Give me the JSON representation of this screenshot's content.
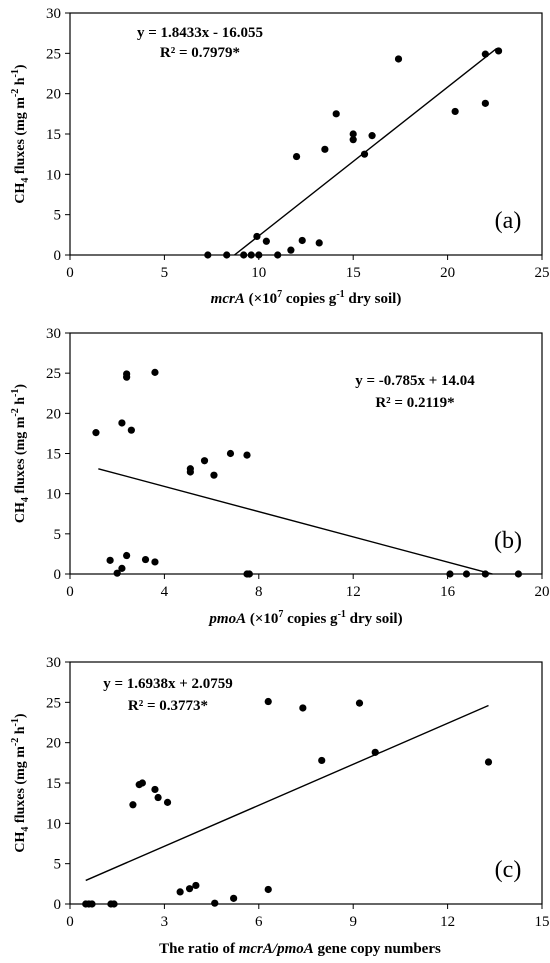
{
  "panels": [
    {
      "label": "(a)",
      "equation": "y = 1.8433x - 16.055",
      "r2": "R² = 0.7979*",
      "ylabel": {
        "pre": "CH",
        "sub": "4",
        "mid": " fluxes (mg m",
        "sup1": "-2",
        "mid2": " h",
        "sup2": "-1",
        "post": ")"
      },
      "xlabel": {
        "ital": "mcrA",
        "pre": " (×10",
        "sup": "7",
        "mid": " copies g",
        "sup2": "-1",
        "post": " dry soil)"
      },
      "xlim": [
        0,
        25
      ],
      "xticks": [
        0,
        5,
        10,
        15,
        20,
        25
      ],
      "ylim": [
        0,
        30
      ],
      "yticks": [
        0,
        5,
        10,
        15,
        20,
        25,
        30
      ],
      "fit": {
        "slope": 1.8433,
        "intercept": -16.055,
        "x_range": [
          8.71,
          22.6
        ]
      },
      "points": [
        [
          7.3,
          0
        ],
        [
          8.3,
          0
        ],
        [
          9.2,
          0
        ],
        [
          9.6,
          0
        ],
        [
          10.0,
          0
        ],
        [
          11.0,
          0
        ],
        [
          9.9,
          2.3
        ],
        [
          10.4,
          1.7
        ],
        [
          11.7,
          0.6
        ],
        [
          12.3,
          1.8
        ],
        [
          13.2,
          1.5
        ],
        [
          12.0,
          12.2
        ],
        [
          13.5,
          13.1
        ],
        [
          14.1,
          17.5
        ],
        [
          15.0,
          14.3
        ],
        [
          15.0,
          15.0
        ],
        [
          15.6,
          12.5
        ],
        [
          16.0,
          14.8
        ],
        [
          17.4,
          24.3
        ],
        [
          20.4,
          17.8
        ],
        [
          22.0,
          24.9
        ],
        [
          22.0,
          18.8
        ],
        [
          22.7,
          25.3
        ]
      ]
    },
    {
      "label": "(b)",
      "equation": "y = -0.785x + 14.04",
      "r2": "R² = 0.2119*",
      "ylabel": {
        "pre": "CH",
        "sub": "4",
        "mid": " fluxes (mg m",
        "sup1": "-2",
        "mid2": " h",
        "sup2": "-1",
        "post": ")"
      },
      "xlabel": {
        "ital": "pmoA",
        "pre": " (×10",
        "sup": "7",
        "mid": " copies g",
        "sup2": "-1",
        "post": " dry soil)"
      },
      "xlim": [
        0,
        20
      ],
      "xticks": [
        0,
        4,
        8,
        12,
        16,
        20
      ],
      "ylim": [
        0,
        30
      ],
      "yticks": [
        0,
        5,
        10,
        15,
        20,
        25,
        30
      ],
      "fit": {
        "slope": -0.785,
        "intercept": 14.04,
        "x_range": [
          1.2,
          17.9
        ]
      },
      "points": [
        [
          1.1,
          17.6
        ],
        [
          2.2,
          18.8
        ],
        [
          2.4,
          24.5
        ],
        [
          2.4,
          24.9
        ],
        [
          2.6,
          17.9
        ],
        [
          3.6,
          25.1
        ],
        [
          1.7,
          1.7
        ],
        [
          2.0,
          0.1
        ],
        [
          2.2,
          0.7
        ],
        [
          2.4,
          2.3
        ],
        [
          3.2,
          1.8
        ],
        [
          3.6,
          1.5
        ],
        [
          5.1,
          12.7
        ],
        [
          5.1,
          13.1
        ],
        [
          5.7,
          14.1
        ],
        [
          6.1,
          12.3
        ],
        [
          6.8,
          15.0
        ],
        [
          7.5,
          14.8
        ],
        [
          7.5,
          0
        ],
        [
          7.6,
          0
        ],
        [
          16.1,
          0
        ],
        [
          16.8,
          0
        ],
        [
          17.6,
          0
        ],
        [
          19.0,
          0
        ]
      ]
    },
    {
      "label": "(c)",
      "equation": "y = 1.6938x + 2.0759",
      "r2": "R² = 0.3773*",
      "ylabel": {
        "pre": "CH",
        "sub": "4",
        "mid": " fluxes (mg m",
        "sup1": "-2",
        "mid2": " h",
        "sup2": "-1",
        "post": ")"
      },
      "xlabel": {
        "pre": "The ratio of ",
        "ital": "mcrA/pmoA",
        "post": " gene copy numbers"
      },
      "xlim": [
        0,
        15
      ],
      "xticks": [
        0,
        3,
        6,
        9,
        12,
        15
      ],
      "ylim": [
        0,
        30
      ],
      "yticks": [
        0,
        5,
        10,
        15,
        20,
        25,
        30
      ],
      "fit": {
        "slope": 1.6938,
        "intercept": 2.0759,
        "x_range": [
          0.5,
          13.3
        ]
      },
      "points": [
        [
          0.5,
          0
        ],
        [
          0.6,
          0
        ],
        [
          0.7,
          0
        ],
        [
          1.3,
          0
        ],
        [
          1.4,
          0
        ],
        [
          2.0,
          12.3
        ],
        [
          2.2,
          14.8
        ],
        [
          2.3,
          15.0
        ],
        [
          2.7,
          14.2
        ],
        [
          2.8,
          13.2
        ],
        [
          3.1,
          12.6
        ],
        [
          3.5,
          1.5
        ],
        [
          3.8,
          1.9
        ],
        [
          4.0,
          2.3
        ],
        [
          4.6,
          0.1
        ],
        [
          5.2,
          0.7
        ],
        [
          6.3,
          1.8
        ],
        [
          6.3,
          25.1
        ],
        [
          7.4,
          24.3
        ],
        [
          8.0,
          17.8
        ],
        [
          9.2,
          24.9
        ],
        [
          9.7,
          18.8
        ],
        [
          13.3,
          17.6
        ]
      ]
    }
  ]
}
